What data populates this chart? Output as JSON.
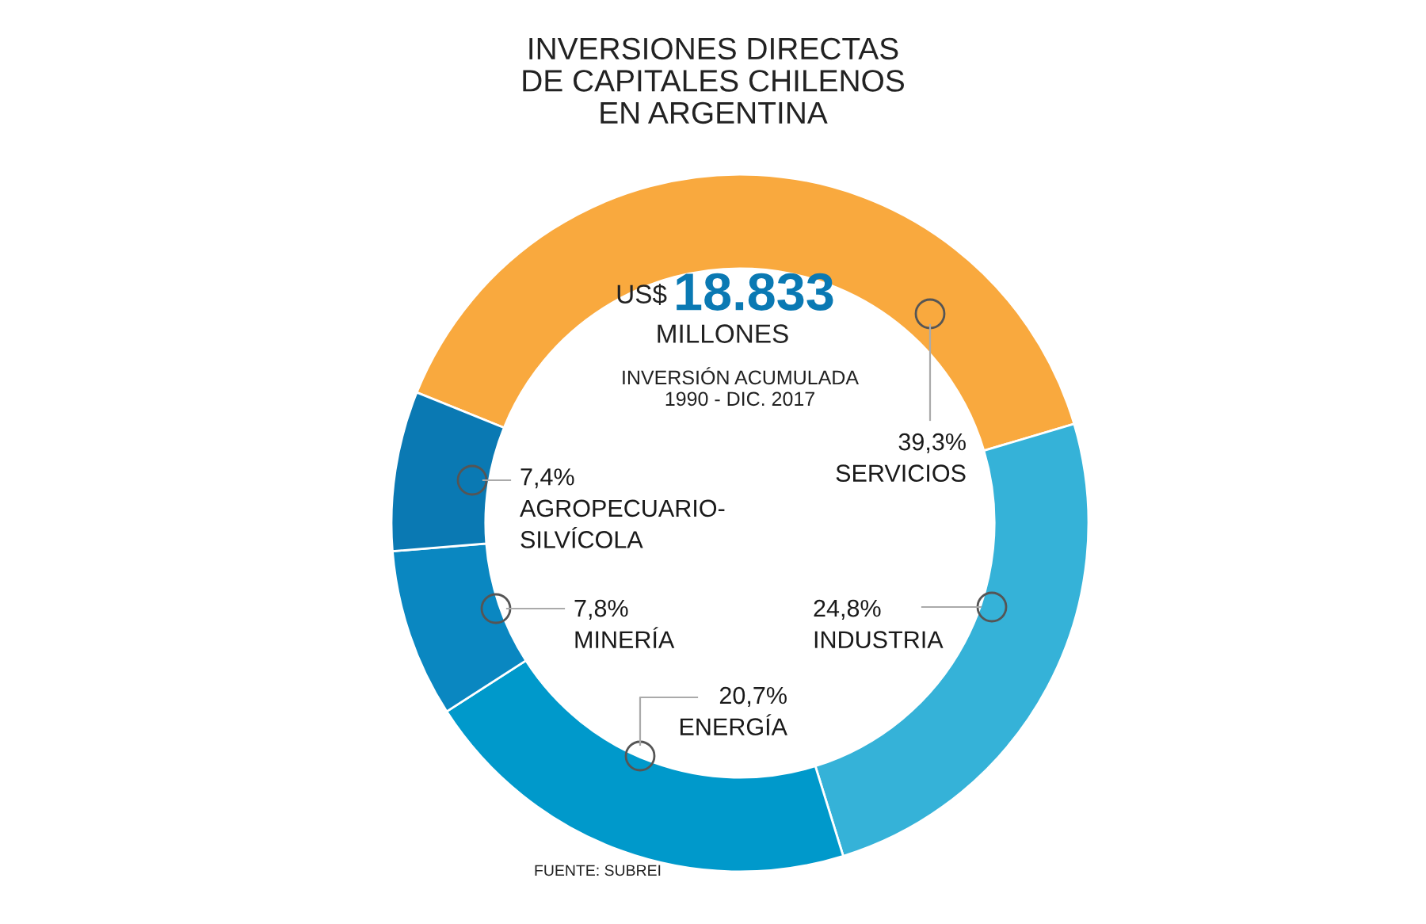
{
  "chart_data": {
    "type": "donut",
    "title": "INVERSIONES DIRECTAS\nDE CAPITALES CHILENOS\nEN ARGENTINA",
    "categories": [
      "SERVICIOS",
      "INDUSTRIA",
      "ENERGÍA",
      "MINERÍA",
      "AGROPECUARIO-\nSILVÍCOLA"
    ],
    "values": [
      39.3,
      24.8,
      20.7,
      7.8,
      7.4
    ],
    "value_labels": [
      "39,3%",
      "24,8%",
      "20,7%",
      "7,8%",
      "7,4%"
    ],
    "colors": [
      "#f9a93e",
      "#35b2d8",
      "#0099cb",
      "#0a87c1",
      "#0a79b3"
    ],
    "annotations": [
      "US$",
      "18.833",
      "MILLONES",
      "INVERSIÓN ACUMULADA\n1990 - DIC. 2017",
      "FUENTE: SUBREI"
    ]
  }
}
